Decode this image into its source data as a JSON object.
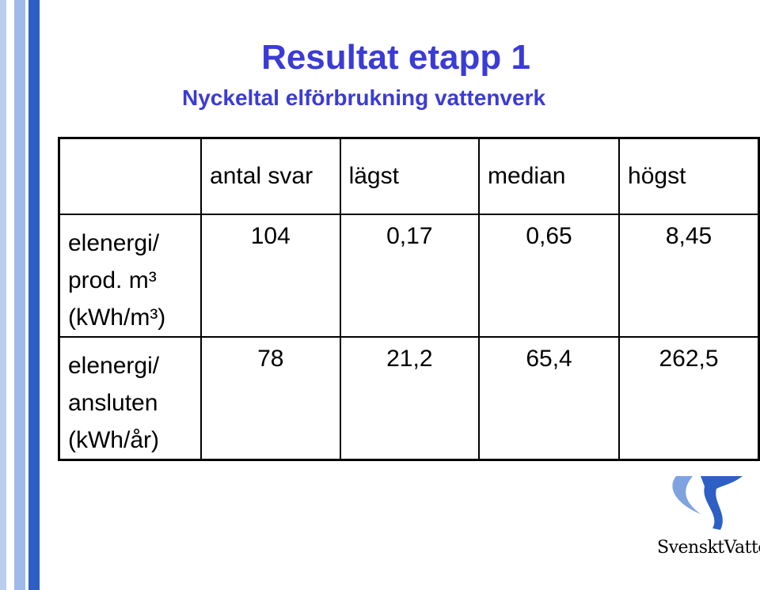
{
  "header": {
    "title": "Resultat etapp 1",
    "subtitle": "Nyckeltal elförbrukning vattenverk"
  },
  "table": {
    "columns": [
      "antal svar",
      "lägst",
      "median",
      "högst"
    ],
    "rows": [
      {
        "label": [
          "elenergi/",
          "prod. m³",
          "(kWh/m³)"
        ],
        "cells": [
          "104",
          "0,17",
          "0,65",
          "8,45"
        ]
      },
      {
        "label": [
          "elenergi/",
          "ansluten",
          "(kWh/år)"
        ],
        "cells": [
          "78",
          "21,2",
          "65,4",
          "262,5"
        ]
      }
    ]
  },
  "logo": {
    "text": "SvensktVatten"
  }
}
